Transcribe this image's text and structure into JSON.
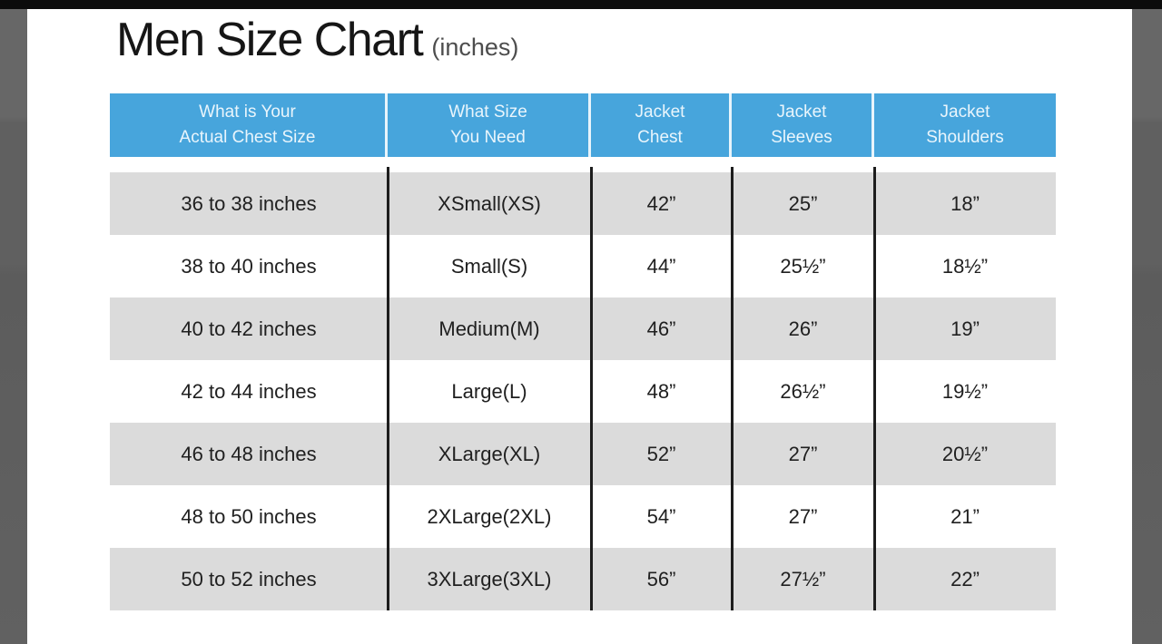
{
  "page": {
    "title": "Men Size Chart",
    "title_suffix": "(inches)"
  },
  "table": {
    "headers": [
      {
        "line1": "What is Your",
        "line2": "Actual Chest Size"
      },
      {
        "line1": "What Size",
        "line2": "You Need"
      },
      {
        "line1": "Jacket",
        "line2": "Chest"
      },
      {
        "line1": "Jacket",
        "line2": "Sleeves"
      },
      {
        "line1": "Jacket",
        "line2": "Shoulders"
      }
    ],
    "rows": [
      [
        "36 to 38 inches",
        "XSmall(XS)",
        "42”",
        "25”",
        "18”"
      ],
      [
        "38 to 40 inches",
        "Small(S)",
        "44”",
        "25½”",
        "18½”"
      ],
      [
        "40 to 42 inches",
        "Medium(M)",
        "46”",
        "26”",
        "19”"
      ],
      [
        "42 to 44 inches",
        "Large(L)",
        "48”",
        "26½”",
        "19½”"
      ],
      [
        "46 to 48 inches",
        "XLarge(XL)",
        "52”",
        "27”",
        "20½”"
      ],
      [
        "48 to 50 inches",
        "2XLarge(2XL)",
        "54”",
        "27”",
        "21”"
      ],
      [
        "50 to 52 inches",
        "3XLarge(3XL)",
        "56”",
        "27½”",
        "22”"
      ]
    ]
  },
  "chart_data": {
    "type": "table",
    "title": "Men Size Chart (inches)",
    "columns": [
      "What is Your Actual Chest Size",
      "What Size You Need",
      "Jacket Chest",
      "Jacket Sleeves",
      "Jacket Shoulders"
    ],
    "rows": [
      [
        "36 to 38 inches",
        "XSmall(XS)",
        "42”",
        "25”",
        "18”"
      ],
      [
        "38 to 40 inches",
        "Small(S)",
        "44”",
        "25½”",
        "18½”"
      ],
      [
        "40 to 42 inches",
        "Medium(M)",
        "46”",
        "26”",
        "19”"
      ],
      [
        "42 to 44 inches",
        "Large(L)",
        "48”",
        "26½”",
        "19½”"
      ],
      [
        "46 to 48 inches",
        "XLarge(XL)",
        "52”",
        "27”",
        "20½”"
      ],
      [
        "48 to 50 inches",
        "2XLarge(2XL)",
        "54”",
        "27”",
        "21”"
      ],
      [
        "50 to 52 inches",
        "3XLarge(3XL)",
        "56”",
        "27½”",
        "22”"
      ]
    ],
    "units": "inches"
  },
  "colors": {
    "header_blue": "#47a5dc",
    "header_text": "#e9f5fc",
    "row_gray": "#dbdbdb",
    "row_white": "#ffffff",
    "body_text": "#202020",
    "divider_black": "#1d1d1d",
    "letterbox_strip_gray": "#626262",
    "top_bar_black": "#0c0c0c",
    "title_text": "#161616",
    "subtitle_text": "#4d4d4d"
  }
}
